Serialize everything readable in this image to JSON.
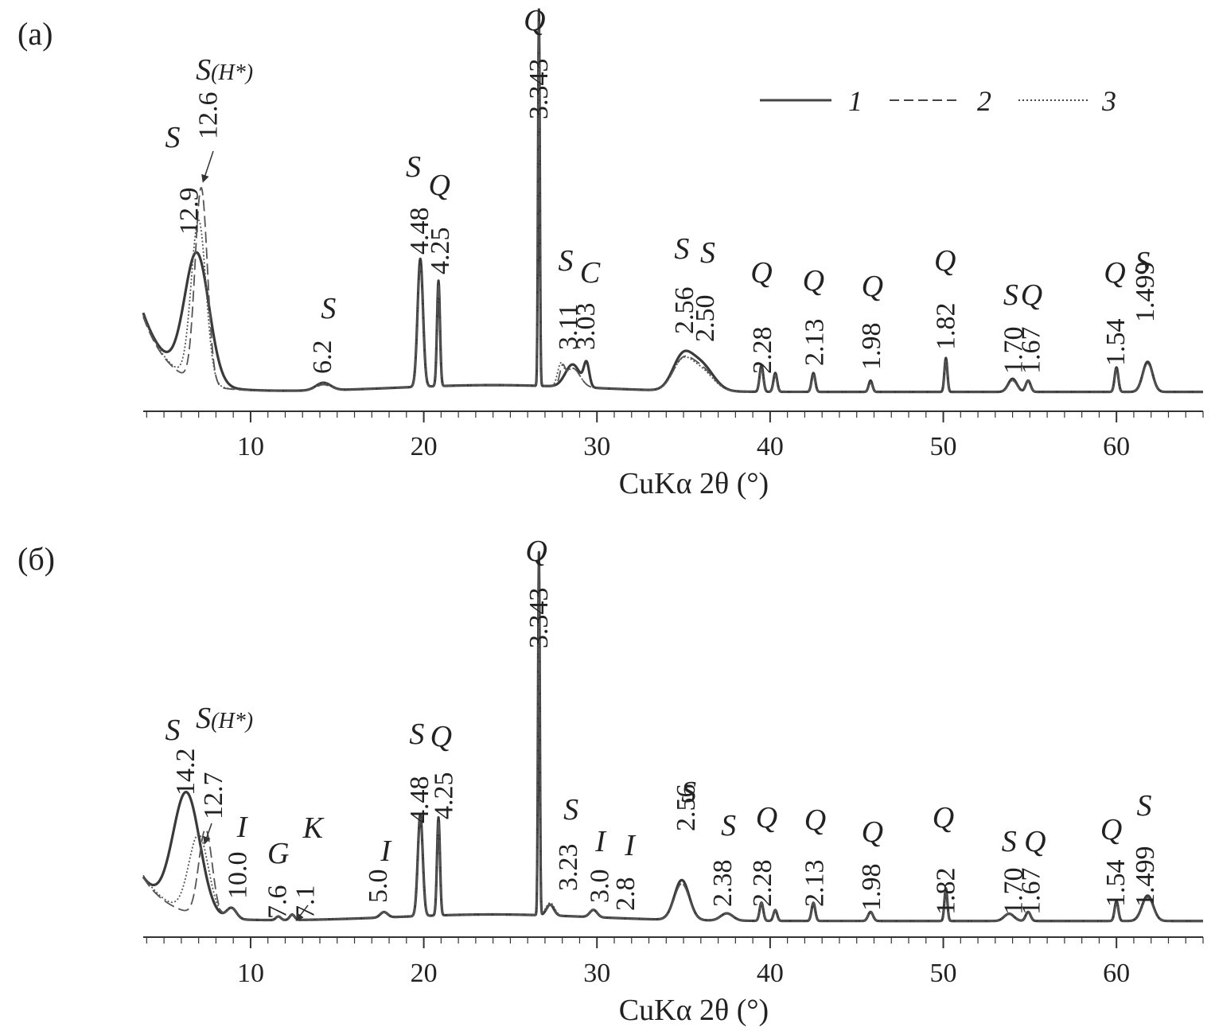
{
  "chart_data": [
    {
      "panel": "(а)",
      "type": "line",
      "xlabel": "CuKα 2θ (°)",
      "ylabel": "",
      "xlim": [
        3.8,
        65
      ],
      "x_ticks": [
        10,
        20,
        30,
        40,
        50,
        60
      ],
      "x_tick_labels": [
        "10",
        "20",
        "30",
        "40",
        "50",
        "60"
      ],
      "grid": false,
      "legend": {
        "placement": "top-right",
        "entries": [
          {
            "label": "1",
            "style": "solid"
          },
          {
            "label": "2",
            "style": "dashed"
          },
          {
            "label": "3",
            "style": "dotted"
          }
        ]
      },
      "background": 0.07,
      "series": [
        {
          "name": "1",
          "style": "solid",
          "offset": 0.0,
          "peaks": [
            [
              6.9,
              0.34,
              1.0
            ],
            [
              14.2,
              0.02,
              0.6
            ],
            [
              19.8,
              0.34,
              0.22
            ],
            [
              20.85,
              0.28,
              0.12
            ],
            [
              26.65,
              1.0,
              0.07
            ],
            [
              28.6,
              0.06,
              0.6
            ],
            [
              29.4,
              0.06,
              0.22
            ],
            [
              34.9,
              0.08,
              0.8
            ],
            [
              36.0,
              0.07,
              1.0
            ],
            [
              39.5,
              0.07,
              0.15
            ],
            [
              40.3,
              0.05,
              0.15
            ],
            [
              42.5,
              0.05,
              0.15
            ],
            [
              45.8,
              0.03,
              0.15
            ],
            [
              50.15,
              0.09,
              0.12
            ],
            [
              54.0,
              0.035,
              0.35
            ],
            [
              54.9,
              0.03,
              0.2
            ],
            [
              60.0,
              0.065,
              0.15
            ],
            [
              61.8,
              0.08,
              0.4
            ]
          ]
        },
        {
          "name": "2",
          "style": "dashed",
          "offset": -0.01,
          "peaks": [
            [
              7.15,
              0.52,
              0.5
            ],
            [
              14.2,
              0.015,
              0.6
            ],
            [
              19.8,
              0.32,
              0.22
            ],
            [
              20.85,
              0.27,
              0.12
            ],
            [
              26.65,
              0.97,
              0.07
            ],
            [
              28.0,
              0.04,
              0.2
            ],
            [
              28.6,
              0.05,
              0.6
            ],
            [
              34.9,
              0.07,
              0.8
            ],
            [
              36.0,
              0.06,
              1.0
            ],
            [
              39.5,
              0.06,
              0.15
            ],
            [
              40.3,
              0.045,
              0.15
            ],
            [
              42.5,
              0.045,
              0.15
            ],
            [
              45.8,
              0.025,
              0.15
            ],
            [
              50.15,
              0.085,
              0.12
            ],
            [
              54.0,
              0.03,
              0.35
            ],
            [
              54.9,
              0.03,
              0.2
            ],
            [
              60.0,
              0.06,
              0.15
            ],
            [
              61.8,
              0.075,
              0.4
            ]
          ]
        },
        {
          "name": "3",
          "style": "dotted",
          "offset": -0.005,
          "peaks": [
            [
              7.0,
              0.43,
              0.6
            ],
            [
              14.2,
              0.02,
              0.6
            ],
            [
              19.8,
              0.32,
              0.22
            ],
            [
              20.85,
              0.27,
              0.12
            ],
            [
              26.65,
              0.97,
              0.07
            ],
            [
              27.9,
              0.05,
              0.25
            ],
            [
              28.6,
              0.05,
              0.6
            ],
            [
              34.9,
              0.07,
              0.8
            ],
            [
              36.0,
              0.055,
              1.0
            ],
            [
              39.5,
              0.06,
              0.15
            ],
            [
              40.3,
              0.045,
              0.15
            ],
            [
              42.5,
              0.045,
              0.15
            ],
            [
              45.8,
              0.025,
              0.15
            ],
            [
              50.15,
              0.085,
              0.12
            ],
            [
              54.0,
              0.03,
              0.35
            ],
            [
              54.9,
              0.03,
              0.2
            ],
            [
              60.0,
              0.06,
              0.15
            ],
            [
              61.8,
              0.075,
              0.4
            ]
          ]
        }
      ],
      "d_annotations": [
        {
          "x": 6.4,
          "text": "12.9"
        },
        {
          "x": 7.5,
          "text": "12.6"
        },
        {
          "x": 14.1,
          "text": "6.2"
        },
        {
          "x": 19.7,
          "text": "4.48"
        },
        {
          "x": 20.9,
          "text": "4.25"
        },
        {
          "x": 26.6,
          "text": "3.343"
        },
        {
          "x": 28.3,
          "text": "3.11"
        },
        {
          "x": 29.3,
          "text": "3.03"
        },
        {
          "x": 35.0,
          "text": "2.56"
        },
        {
          "x": 36.2,
          "text": "2.50"
        },
        {
          "x": 39.5,
          "text": "2.28"
        },
        {
          "x": 42.5,
          "text": "2.13"
        },
        {
          "x": 45.8,
          "text": "1.98"
        },
        {
          "x": 50.1,
          "text": "1.82"
        },
        {
          "x": 54.0,
          "text": "1.70"
        },
        {
          "x": 55.0,
          "text": "1.67"
        },
        {
          "x": 59.9,
          "text": "1.54"
        },
        {
          "x": 61.6,
          "text": "1.499"
        }
      ],
      "mineral_labels": [
        {
          "x": 5.5,
          "text": "S",
          "sub": ""
        },
        {
          "x": 7.3,
          "text": "S",
          "sub": "(H*)"
        },
        {
          "x": 14.5,
          "text": "S",
          "sub": ""
        },
        {
          "x": 19.4,
          "text": "S",
          "sub": ""
        },
        {
          "x": 20.9,
          "text": "Q",
          "sub": ""
        },
        {
          "x": 26.4,
          "text": "Q",
          "sub": ""
        },
        {
          "x": 28.2,
          "text": "S",
          "sub": ""
        },
        {
          "x": 29.6,
          "text": "C",
          "sub": ""
        },
        {
          "x": 34.9,
          "text": "S",
          "sub": ""
        },
        {
          "x": 36.4,
          "text": "S",
          "sub": ""
        },
        {
          "x": 39.5,
          "text": "Q",
          "sub": ""
        },
        {
          "x": 42.5,
          "text": "Q",
          "sub": ""
        },
        {
          "x": 45.9,
          "text": "Q",
          "sub": ""
        },
        {
          "x": 50.1,
          "text": "Q",
          "sub": ""
        },
        {
          "x": 53.9,
          "text": "S",
          "sub": ""
        },
        {
          "x": 55.1,
          "text": "Q",
          "sub": ""
        },
        {
          "x": 59.9,
          "text": "Q",
          "sub": ""
        },
        {
          "x": 61.5,
          "text": "S",
          "sub": ""
        }
      ]
    },
    {
      "panel": "(б)",
      "type": "line",
      "xlabel": "CuKα 2θ (°)",
      "ylabel": "",
      "xlim": [
        3.8,
        65
      ],
      "x_ticks": [
        10,
        20,
        30,
        40,
        50,
        60
      ],
      "x_tick_labels": [
        "10",
        "20",
        "30",
        "40",
        "50",
        "60"
      ],
      "grid": false,
      "background": 0.04,
      "series": [
        {
          "name": "1",
          "style": "solid",
          "offset": 0.0,
          "peaks": [
            [
              6.3,
              0.33,
              1.1
            ],
            [
              8.9,
              0.03,
              0.4
            ],
            [
              11.6,
              0.01,
              0.2
            ],
            [
              12.4,
              0.015,
              0.2
            ],
            [
              17.7,
              0.015,
              0.3
            ],
            [
              19.8,
              0.28,
              0.2
            ],
            [
              20.85,
              0.27,
              0.12
            ],
            [
              26.65,
              1.0,
              0.07
            ],
            [
              27.3,
              0.03,
              0.3
            ],
            [
              29.8,
              0.02,
              0.3
            ],
            [
              34.9,
              0.11,
              0.6
            ],
            [
              37.5,
              0.02,
              0.5
            ],
            [
              39.5,
              0.05,
              0.15
            ],
            [
              40.3,
              0.03,
              0.15
            ],
            [
              42.5,
              0.05,
              0.15
            ],
            [
              45.8,
              0.025,
              0.2
            ],
            [
              50.15,
              0.09,
              0.12
            ],
            [
              53.8,
              0.02,
              0.4
            ],
            [
              54.9,
              0.025,
              0.2
            ],
            [
              60.0,
              0.055,
              0.15
            ],
            [
              61.8,
              0.07,
              0.45
            ]
          ]
        },
        {
          "name": "2",
          "style": "dashed",
          "offset": 0.0,
          "peaks": [
            [
              7.4,
              0.24,
              0.55
            ],
            [
              8.9,
              0.03,
              0.4
            ],
            [
              11.6,
              0.01,
              0.2
            ],
            [
              12.4,
              0.015,
              0.2
            ],
            [
              17.7,
              0.015,
              0.3
            ],
            [
              19.8,
              0.27,
              0.2
            ],
            [
              20.85,
              0.26,
              0.12
            ],
            [
              26.65,
              0.97,
              0.07
            ],
            [
              27.3,
              0.03,
              0.3
            ],
            [
              29.8,
              0.02,
              0.3
            ],
            [
              34.9,
              0.1,
              0.6
            ],
            [
              37.5,
              0.02,
              0.5
            ],
            [
              39.5,
              0.05,
              0.15
            ],
            [
              40.3,
              0.03,
              0.15
            ],
            [
              42.5,
              0.05,
              0.15
            ],
            [
              45.8,
              0.025,
              0.2
            ],
            [
              50.15,
              0.085,
              0.12
            ],
            [
              53.8,
              0.02,
              0.4
            ],
            [
              54.9,
              0.025,
              0.2
            ],
            [
              60.0,
              0.05,
              0.15
            ],
            [
              61.8,
              0.065,
              0.45
            ]
          ]
        },
        {
          "name": "3",
          "style": "dotted",
          "offset": 0.006,
          "peaks": [
            [
              7.0,
              0.22,
              0.8
            ],
            [
              8.9,
              0.03,
              0.4
            ],
            [
              11.6,
              0.01,
              0.2
            ],
            [
              12.4,
              0.015,
              0.2
            ],
            [
              17.7,
              0.015,
              0.3
            ],
            [
              19.8,
              0.27,
              0.2
            ],
            [
              20.85,
              0.26,
              0.12
            ],
            [
              26.65,
              0.97,
              0.07
            ],
            [
              27.3,
              0.035,
              0.35
            ],
            [
              29.8,
              0.02,
              0.3
            ],
            [
              34.9,
              0.1,
              0.6
            ],
            [
              37.5,
              0.02,
              0.5
            ],
            [
              39.5,
              0.05,
              0.15
            ],
            [
              40.3,
              0.03,
              0.15
            ],
            [
              42.5,
              0.05,
              0.15
            ],
            [
              45.8,
              0.025,
              0.2
            ],
            [
              50.15,
              0.085,
              0.12
            ],
            [
              53.8,
              0.02,
              0.4
            ],
            [
              54.9,
              0.025,
              0.2
            ],
            [
              60.0,
              0.05,
              0.15
            ],
            [
              61.8,
              0.065,
              0.45
            ]
          ]
        }
      ],
      "d_annotations": [
        {
          "x": 6.2,
          "text": "14.2"
        },
        {
          "x": 7.8,
          "text": "12.7"
        },
        {
          "x": 9.2,
          "text": "10.0"
        },
        {
          "x": 11.5,
          "text": "7.6"
        },
        {
          "x": 13.1,
          "text": "7.1"
        },
        {
          "x": 17.3,
          "text": "5.0"
        },
        {
          "x": 19.7,
          "text": "4.48"
        },
        {
          "x": 21.1,
          "text": "4.25"
        },
        {
          "x": 26.6,
          "text": "3.343"
        },
        {
          "x": 28.3,
          "text": "3.23"
        },
        {
          "x": 30.1,
          "text": "3.0"
        },
        {
          "x": 31.6,
          "text": "2.8"
        },
        {
          "x": 35.1,
          "text": "2.56"
        },
        {
          "x": 37.2,
          "text": "2.38"
        },
        {
          "x": 39.5,
          "text": "2.28"
        },
        {
          "x": 42.5,
          "text": "2.13"
        },
        {
          "x": 45.8,
          "text": "1.98"
        },
        {
          "x": 50.1,
          "text": "1.82"
        },
        {
          "x": 54.0,
          "text": "1.70"
        },
        {
          "x": 55.0,
          "text": "1.67"
        },
        {
          "x": 59.9,
          "text": "1.54"
        },
        {
          "x": 61.6,
          "text": "1.499"
        }
      ],
      "mineral_labels": [
        {
          "x": 5.5,
          "text": "S",
          "sub": ""
        },
        {
          "x": 7.3,
          "text": "S",
          "sub": "(H*)"
        },
        {
          "x": 9.5,
          "text": "I",
          "sub": ""
        },
        {
          "x": 11.6,
          "text": "G",
          "sub": ""
        },
        {
          "x": 13.6,
          "text": "K",
          "sub": ""
        },
        {
          "x": 17.8,
          "text": "I",
          "sub": ""
        },
        {
          "x": 19.6,
          "text": "S",
          "sub": ""
        },
        {
          "x": 21.0,
          "text": "Q",
          "sub": ""
        },
        {
          "x": 26.5,
          "text": "Q",
          "sub": ""
        },
        {
          "x": 28.5,
          "text": "S",
          "sub": ""
        },
        {
          "x": 30.2,
          "text": "I",
          "sub": ""
        },
        {
          "x": 31.9,
          "text": "I",
          "sub": ""
        },
        {
          "x": 35.3,
          "text": "S",
          "sub": ""
        },
        {
          "x": 37.6,
          "text": "S",
          "sub": ""
        },
        {
          "x": 39.8,
          "text": "Q",
          "sub": ""
        },
        {
          "x": 42.6,
          "text": "Q",
          "sub": ""
        },
        {
          "x": 45.9,
          "text": "Q",
          "sub": ""
        },
        {
          "x": 50.0,
          "text": "Q",
          "sub": ""
        },
        {
          "x": 53.8,
          "text": "S",
          "sub": ""
        },
        {
          "x": 55.3,
          "text": "Q",
          "sub": ""
        },
        {
          "x": 59.7,
          "text": "Q",
          "sub": ""
        },
        {
          "x": 61.6,
          "text": "S",
          "sub": ""
        }
      ]
    }
  ]
}
